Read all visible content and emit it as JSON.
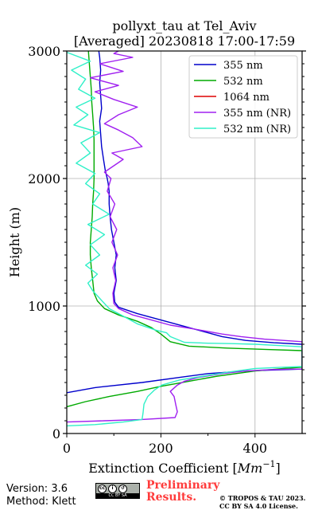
{
  "chart_data": {
    "type": "line",
    "title": "pollyxt_tau at Tel_Aviv",
    "subtitle": "[Averaged] 20230818 17:00-17:59",
    "xlabel": "Extinction Coefficient [",
    "xlabel_unit": "Mm",
    "xlabel_exp": "−1",
    "xlabel_close": "]",
    "ylabel": "Height (m)",
    "xlim": [
      0,
      500
    ],
    "ylim": [
      0,
      3000
    ],
    "xticks": [
      0,
      200,
      400
    ],
    "yticks": [
      0,
      1000,
      2000,
      3000
    ],
    "grid": true,
    "legend_position": "top-right",
    "series": [
      {
        "name": "355 nm",
        "color": "#0000cc",
        "points": [
          [
            0,
            320
          ],
          [
            60,
            360
          ],
          [
            160,
            400
          ],
          [
            240,
            440
          ],
          [
            300,
            470
          ],
          [
            380,
            490
          ],
          [
            440,
            498
          ],
          [
            500,
            505
          ],
          [
            500,
            700
          ],
          [
            440,
            712
          ],
          [
            380,
            730
          ],
          [
            330,
            760
          ],
          [
            300,
            790
          ],
          [
            250,
            840
          ],
          [
            200,
            890
          ],
          [
            150,
            940
          ],
          [
            110,
            990
          ],
          [
            102,
            1030
          ],
          [
            100,
            1100
          ],
          [
            105,
            1200
          ],
          [
            102,
            1300
          ],
          [
            105,
            1400
          ],
          [
            100,
            1500
          ],
          [
            95,
            1600
          ],
          [
            92,
            1700
          ],
          [
            90,
            1800
          ],
          [
            90,
            1900
          ],
          [
            88,
            1960
          ],
          [
            86,
            2000
          ],
          [
            82,
            2060
          ],
          [
            78,
            2150
          ],
          [
            74,
            2250
          ],
          [
            72,
            2350
          ],
          [
            70,
            2450
          ],
          [
            74,
            2550
          ],
          [
            72,
            2650
          ],
          [
            70,
            2750
          ],
          [
            72,
            2850
          ],
          [
            70,
            2950
          ],
          [
            68,
            3000
          ]
        ]
      },
      {
        "name": "532 nm",
        "color": "#00aa00",
        "points": [
          [
            0,
            210
          ],
          [
            40,
            250
          ],
          [
            90,
            290
          ],
          [
            150,
            330
          ],
          [
            200,
            370
          ],
          [
            260,
            410
          ],
          [
            320,
            450
          ],
          [
            400,
            490
          ],
          [
            460,
            510
          ],
          [
            500,
            520
          ],
          [
            500,
            650
          ],
          [
            420,
            660
          ],
          [
            340,
            670
          ],
          [
            260,
            685
          ],
          [
            220,
            720
          ],
          [
            200,
            780
          ],
          [
            180,
            830
          ],
          [
            150,
            880
          ],
          [
            110,
            930
          ],
          [
            80,
            980
          ],
          [
            65,
            1040
          ],
          [
            58,
            1100
          ],
          [
            55,
            1200
          ],
          [
            52,
            1300
          ],
          [
            50,
            1400
          ],
          [
            50,
            1500
          ],
          [
            52,
            1600
          ],
          [
            54,
            1700
          ],
          [
            55,
            1800
          ],
          [
            57,
            1900
          ],
          [
            58,
            2000
          ],
          [
            58,
            2100
          ],
          [
            58,
            2200
          ],
          [
            58,
            2300
          ],
          [
            57,
            2400
          ],
          [
            55,
            2500
          ],
          [
            53,
            2600
          ],
          [
            52,
            2700
          ],
          [
            50,
            2800
          ],
          [
            48,
            2900
          ],
          [
            46,
            3000
          ]
        ]
      },
      {
        "name": "1064 nm",
        "color": "#dd0000",
        "points": []
      },
      {
        "name": "355 nm (NR)",
        "color": "#a020f0",
        "points": [
          [
            0,
            90
          ],
          [
            80,
            100
          ],
          [
            160,
            110
          ],
          [
            230,
            125
          ],
          [
            235,
            170
          ],
          [
            232,
            220
          ],
          [
            228,
            290
          ],
          [
            220,
            330
          ],
          [
            235,
            380
          ],
          [
            250,
            410
          ],
          [
            280,
            440
          ],
          [
            330,
            470
          ],
          [
            380,
            490
          ],
          [
            430,
            500
          ],
          [
            480,
            505
          ],
          [
            500,
            505
          ],
          [
            500,
            720
          ],
          [
            460,
            730
          ],
          [
            420,
            740
          ],
          [
            370,
            760
          ],
          [
            330,
            780
          ],
          [
            270,
            820
          ],
          [
            220,
            850
          ],
          [
            180,
            890
          ],
          [
            140,
            930
          ],
          [
            110,
            980
          ],
          [
            100,
            1020
          ],
          [
            98,
            1100
          ],
          [
            104,
            1200
          ],
          [
            98,
            1300
          ],
          [
            108,
            1400
          ],
          [
            96,
            1500
          ],
          [
            106,
            1600
          ],
          [
            92,
            1700
          ],
          [
            102,
            1800
          ],
          [
            86,
            1900
          ],
          [
            94,
            2000
          ],
          [
            80,
            2050
          ],
          [
            120,
            2150
          ],
          [
            96,
            2200
          ],
          [
            160,
            2250
          ],
          [
            140,
            2320
          ],
          [
            110,
            2380
          ],
          [
            80,
            2430
          ],
          [
            110,
            2500
          ],
          [
            150,
            2560
          ],
          [
            100,
            2620
          ],
          [
            60,
            2680
          ],
          [
            110,
            2730
          ],
          [
            50,
            2790
          ],
          [
            120,
            2840
          ],
          [
            70,
            2900
          ],
          [
            140,
            2950
          ],
          [
            100,
            2980
          ],
          [
            110,
            3000
          ]
        ]
      },
      {
        "name": "532 nm (NR)",
        "color": "#30f0c8",
        "points": [
          [
            0,
            60
          ],
          [
            60,
            70
          ],
          [
            120,
            90
          ],
          [
            160,
            110
          ],
          [
            162,
            160
          ],
          [
            164,
            230
          ],
          [
            172,
            290
          ],
          [
            186,
            340
          ],
          [
            202,
            380
          ],
          [
            240,
            420
          ],
          [
            290,
            450
          ],
          [
            340,
            480
          ],
          [
            400,
            510
          ],
          [
            460,
            520
          ],
          [
            500,
            525
          ],
          [
            500,
            680
          ],
          [
            450,
            690
          ],
          [
            400,
            700
          ],
          [
            350,
            705
          ],
          [
            300,
            708
          ],
          [
            250,
            715
          ],
          [
            220,
            760
          ],
          [
            212,
            790
          ],
          [
            190,
            810
          ],
          [
            150,
            860
          ],
          [
            120,
            920
          ],
          [
            90,
            980
          ],
          [
            70,
            1060
          ],
          [
            55,
            1120
          ],
          [
            45,
            1180
          ],
          [
            65,
            1250
          ],
          [
            40,
            1320
          ],
          [
            70,
            1400
          ],
          [
            50,
            1480
          ],
          [
            80,
            1560
          ],
          [
            45,
            1640
          ],
          [
            90,
            1720
          ],
          [
            55,
            1800
          ],
          [
            70,
            1880
          ],
          [
            40,
            1960
          ],
          [
            60,
            2040
          ],
          [
            20,
            2120
          ],
          [
            50,
            2200
          ],
          [
            30,
            2280
          ],
          [
            70,
            2360
          ],
          [
            15,
            2420
          ],
          [
            45,
            2500
          ],
          [
            20,
            2560
          ],
          [
            60,
            2630
          ],
          [
            25,
            2700
          ],
          [
            40,
            2780
          ],
          [
            10,
            2850
          ],
          [
            50,
            2920
          ],
          [
            0,
            2990
          ]
        ]
      }
    ]
  },
  "footer": {
    "version": "Version: 3.6",
    "method": "Method: Klett",
    "cc_label": "CC BY SA",
    "preliminary_line1": "Preliminary",
    "preliminary_line2": "Results.",
    "copyright_line1": "© TROPOS & TAU 2023.",
    "copyright_line2": "CC BY SA 4.0 License."
  }
}
